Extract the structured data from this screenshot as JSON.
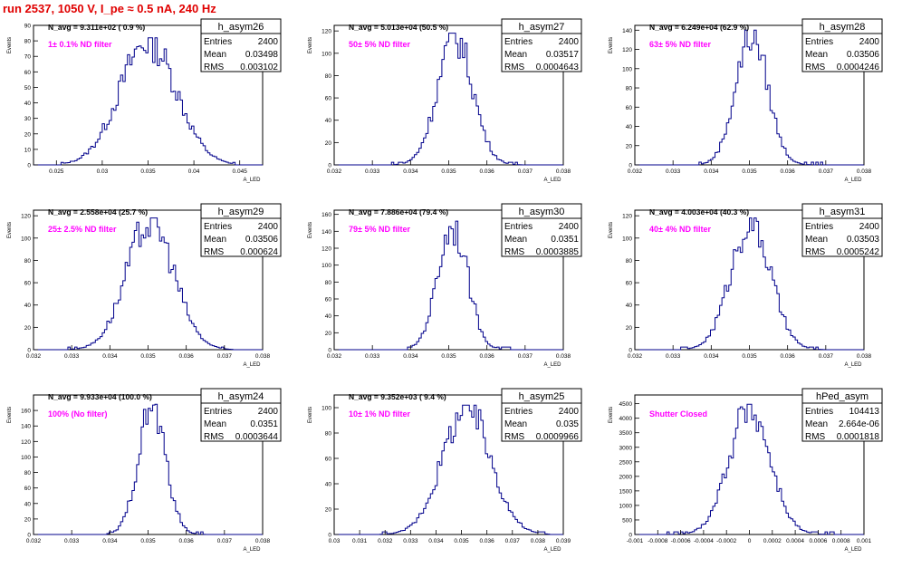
{
  "page_title": "run 2537,  1050 V, I_pe ≈ 0.5 nA, 240 Hz",
  "stat_labels": {
    "entries": "Entries",
    "mean": "Mean",
    "rms": "RMS"
  },
  "ylabel": "Events",
  "xlabel": "A_LED",
  "colors": {
    "title": "#e00000",
    "annotation": "#ff00ff",
    "histogram": "#00008b",
    "axis": "#000000"
  },
  "chart_data": [
    {
      "type": "bar",
      "name": "h_asym26",
      "navg": "N_avg = 9.311e+02 ( 0.9 %)",
      "filter": "1± 0.1% ND filter",
      "entries": "2400",
      "mean": "0.03498",
      "rms": "0.003102",
      "xlim": [
        0.0225,
        0.0475
      ],
      "xticks": [
        "0.025",
        "0.03",
        "0.035",
        "0.04",
        "0.045"
      ],
      "xtick_values": [
        0.025,
        0.03,
        0.035,
        0.04,
        0.045
      ],
      "ylim": [
        0,
        90
      ],
      "yticks": [
        "0",
        "10",
        "20",
        "30",
        "40",
        "50",
        "60",
        "70",
        "80",
        "90"
      ],
      "ytick_values": [
        0,
        10,
        20,
        30,
        40,
        50,
        60,
        70,
        80,
        90
      ],
      "peak": 82,
      "peak_center": 0.035,
      "sigma": 0.0031,
      "xmin_range": 0.0255,
      "xmax_range": 0.0445
    },
    {
      "type": "bar",
      "name": "h_asym27",
      "navg": "N_avg = 5.013e+04 (50.5 %)",
      "filter": "50± 5% ND filter",
      "entries": "2400",
      "mean": "0.03517",
      "rms": "0.0004643",
      "xlim": [
        0.032,
        0.038
      ],
      "xticks": [
        "0.032",
        "0.033",
        "0.034",
        "0.035",
        "0.036",
        "0.037",
        "0.038"
      ],
      "xtick_values": [
        0.032,
        0.033,
        0.034,
        0.035,
        0.036,
        0.037,
        0.038
      ],
      "ylim": [
        0,
        125
      ],
      "yticks": [
        "0",
        "20",
        "40",
        "60",
        "80",
        "100",
        "120"
      ],
      "ytick_values": [
        0,
        20,
        40,
        60,
        80,
        100,
        120
      ],
      "peak": 118,
      "peak_center": 0.03517,
      "sigma": 0.00046,
      "xmin_range": 0.0335,
      "xmax_range": 0.0369
    },
    {
      "type": "bar",
      "name": "h_asym28",
      "navg": "N_avg = 6.249e+04 (62.9 %)",
      "filter": "63± 5% ND filter",
      "entries": "2400",
      "mean": "0.03506",
      "rms": "0.0004246",
      "xlim": [
        0.032,
        0.038
      ],
      "xticks": [
        "0.032",
        "0.033",
        "0.034",
        "0.035",
        "0.036",
        "0.037",
        "0.038"
      ],
      "xtick_values": [
        0.032,
        0.033,
        0.034,
        0.035,
        0.036,
        0.037,
        0.038
      ],
      "ylim": [
        0,
        145
      ],
      "yticks": [
        "0",
        "20",
        "40",
        "60",
        "80",
        "100",
        "120",
        "140"
      ],
      "ytick_values": [
        0,
        20,
        40,
        60,
        80,
        100,
        120,
        140
      ],
      "peak": 140,
      "peak_center": 0.03506,
      "sigma": 0.00042,
      "xmin_range": 0.0337,
      "xmax_range": 0.0369
    },
    {
      "type": "bar",
      "name": "h_asym29",
      "navg": "N_avg = 2.558e+04 (25.7 %)",
      "filter": "25± 2.5% ND filter",
      "entries": "2400",
      "mean": "0.03506",
      "rms": "0.000624",
      "xlim": [
        0.032,
        0.038
      ],
      "xticks": [
        "0.032",
        "0.033",
        "0.034",
        "0.035",
        "0.036",
        "0.037",
        "0.038"
      ],
      "xtick_values": [
        0.032,
        0.033,
        0.034,
        0.035,
        0.036,
        0.037,
        0.038
      ],
      "ylim": [
        0,
        125
      ],
      "yticks": [
        "0",
        "20",
        "40",
        "60",
        "80",
        "100",
        "120"
      ],
      "ytick_values": [
        0,
        20,
        40,
        60,
        80,
        100,
        120
      ],
      "peak": 118,
      "peak_center": 0.03506,
      "sigma": 0.00062,
      "xmin_range": 0.0329,
      "xmax_range": 0.0372
    },
    {
      "type": "bar",
      "name": "h_asym30",
      "navg": "N_avg = 7.886e+04 (79.4 %)",
      "filter": "79± 5% ND filter",
      "entries": "2400",
      "mean": "0.0351",
      "rms": "0.0003885",
      "xlim": [
        0.032,
        0.038
      ],
      "xticks": [
        "0.032",
        "0.033",
        "0.034",
        "0.035",
        "0.036",
        "0.037",
        "0.038"
      ],
      "xtick_values": [
        0.032,
        0.033,
        0.034,
        0.035,
        0.036,
        0.037,
        0.038
      ],
      "ylim": [
        0,
        165
      ],
      "yticks": [
        "0",
        "20",
        "40",
        "60",
        "80",
        "100",
        "120",
        "140",
        "160"
      ],
      "ytick_values": [
        0,
        20,
        40,
        60,
        80,
        100,
        120,
        140,
        160
      ],
      "peak": 152,
      "peak_center": 0.0351,
      "sigma": 0.00039,
      "xmin_range": 0.0339,
      "xmax_range": 0.0366
    },
    {
      "type": "bar",
      "name": "h_asym31",
      "navg": "N_avg = 4.003e+04 (40.3 %)",
      "filter": "40± 4% ND filter",
      "entries": "2400",
      "mean": "0.03503",
      "rms": "0.0005242",
      "xlim": [
        0.032,
        0.038
      ],
      "xticks": [
        "0.032",
        "0.033",
        "0.034",
        "0.035",
        "0.036",
        "0.037",
        "0.038"
      ],
      "xtick_values": [
        0.032,
        0.033,
        0.034,
        0.035,
        0.036,
        0.037,
        0.038
      ],
      "ylim": [
        0,
        125
      ],
      "yticks": [
        "0",
        "20",
        "40",
        "60",
        "80",
        "100",
        "120"
      ],
      "ytick_values": [
        0,
        20,
        40,
        60,
        80,
        100,
        120
      ],
      "peak": 118,
      "peak_center": 0.03503,
      "sigma": 0.00052,
      "xmin_range": 0.0332,
      "xmax_range": 0.037
    },
    {
      "type": "bar",
      "name": "h_asym24",
      "navg": "N_avg = 9.933e+04 (100.0 %)",
      "filter": "100% (No filter)",
      "entries": "2400",
      "mean": "0.0351",
      "rms": "0.0003644",
      "xlim": [
        0.032,
        0.038
      ],
      "xticks": [
        "0.032",
        "0.033",
        "0.034",
        "0.035",
        "0.036",
        "0.037",
        "0.038"
      ],
      "xtick_values": [
        0.032,
        0.033,
        0.034,
        0.035,
        0.036,
        0.037,
        0.038
      ],
      "ylim": [
        0,
        180
      ],
      "yticks": [
        "0",
        "20",
        "40",
        "60",
        "80",
        "100",
        "120",
        "140",
        "160"
      ],
      "ytick_values": [
        0,
        20,
        40,
        60,
        80,
        100,
        120,
        140,
        160
      ],
      "peak": 168,
      "peak_center": 0.0351,
      "sigma": 0.00036,
      "xmin_range": 0.0339,
      "xmax_range": 0.0365
    },
    {
      "type": "bar",
      "name": "h_asym25",
      "navg": "N_avg = 9.352e+03 ( 9.4 %)",
      "filter": "10± 1% ND filter",
      "entries": "2400",
      "mean": "0.035",
      "rms": "0.0009966",
      "xlim": [
        0.03,
        0.039
      ],
      "xticks": [
        "0.03",
        "0.031",
        "0.032",
        "0.033",
        "0.034",
        "0.035",
        "0.036",
        "0.037",
        "0.038",
        "0.039"
      ],
      "xtick_values": [
        0.03,
        0.031,
        0.032,
        0.033,
        0.034,
        0.035,
        0.036,
        0.037,
        0.038,
        0.039
      ],
      "ylim": [
        0,
        110
      ],
      "yticks": [
        "0",
        "20",
        "40",
        "60",
        "80",
        "100"
      ],
      "ytick_values": [
        0,
        20,
        40,
        60,
        80,
        100
      ],
      "peak": 102,
      "peak_center": 0.0352,
      "sigma": 0.00095,
      "xmin_range": 0.0318,
      "xmax_range": 0.0385
    },
    {
      "type": "bar",
      "name": "hPed_asym",
      "navg": "",
      "filter": "Shutter Closed",
      "entries": "104413",
      "mean": "2.664e-06",
      "rms": "0.0001818",
      "xlim": [
        -0.001,
        0.001
      ],
      "xticks": [
        "-0.001",
        "-0.0008",
        "-0.0006",
        "-0.0004",
        "-0.0002",
        "0",
        "0.0002",
        "0.0004",
        "0.0006",
        "0.0008",
        "0.001"
      ],
      "xtick_values": [
        -0.001,
        -0.0008,
        -0.0006,
        -0.0004,
        -0.0002,
        0,
        0.0002,
        0.0004,
        0.0006,
        0.0008,
        0.001
      ],
      "ylim": [
        0,
        4800
      ],
      "yticks": [
        "0",
        "500",
        "1000",
        "1500",
        "2000",
        "2500",
        "3000",
        "3500",
        "4000",
        "4500"
      ],
      "ytick_values": [
        0,
        500,
        1000,
        1500,
        2000,
        2500,
        3000,
        3500,
        4000,
        4500
      ],
      "peak": 4480,
      "peak_center": 0.0,
      "sigma": 0.00018,
      "xmin_range": -0.00075,
      "xmax_range": 0.00075
    }
  ]
}
